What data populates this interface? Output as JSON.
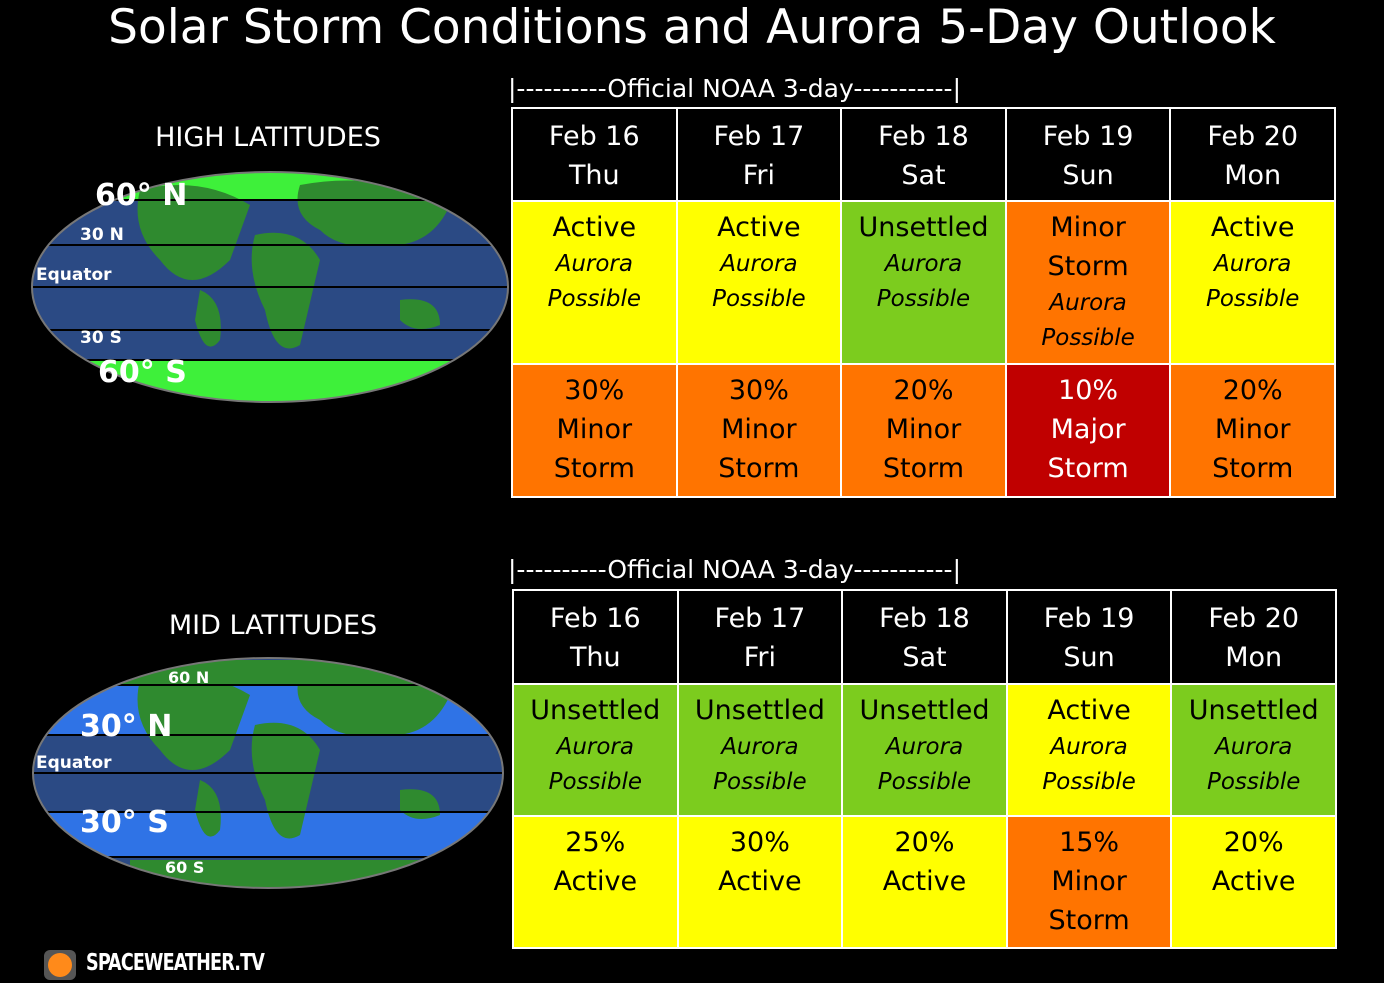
{
  "title": "Solar Storm Conditions and Aurora 5-Day Outlook",
  "sections": [
    {
      "label": "HIGH LATITUDES",
      "map_labels": [
        "60° N",
        "30 N",
        "Equator",
        "30 S",
        "60° S"
      ],
      "banner": "|----------Official NOAA 3-day-----------|",
      "days": [
        {
          "date": "Feb 16",
          "weekday": "Thu"
        },
        {
          "date": "Feb 17",
          "weekday": "Fri"
        },
        {
          "date": "Feb 18",
          "weekday": "Sat"
        },
        {
          "date": "Feb 19",
          "weekday": "Sun"
        },
        {
          "date": "Feb 20",
          "weekday": "Mon"
        }
      ],
      "conditions": [
        {
          "level": "Active",
          "note": "Aurora Possible",
          "color": "#ffff00"
        },
        {
          "level": "Active",
          "note": "Aurora Possible",
          "color": "#ffff00"
        },
        {
          "level": "Unsettled",
          "note": "Aurora Possible",
          "color": "#7ccc1e"
        },
        {
          "level": "Minor Storm",
          "note": "Aurora Possible",
          "color": "#ff7400"
        },
        {
          "level": "Active",
          "note": "Aurora Possible",
          "color": "#ffff00"
        }
      ],
      "chances": [
        {
          "percent": "30%",
          "level": "Minor Storm",
          "color": "#ff7400"
        },
        {
          "percent": "30%",
          "level": "Minor Storm",
          "color": "#ff7400"
        },
        {
          "percent": "20%",
          "level": "Minor Storm",
          "color": "#ff7400"
        },
        {
          "percent": "10%",
          "level": "Major Storm",
          "color": "#c00000"
        },
        {
          "percent": "20%",
          "level": "Minor Storm",
          "color": "#ff7400"
        }
      ]
    },
    {
      "label": "MID LATITUDES",
      "map_labels": [
        "60 N",
        "30° N",
        "Equator",
        "30° S",
        "60 S"
      ],
      "banner": "|----------Official NOAA 3-day-----------|",
      "days": [
        {
          "date": "Feb 16",
          "weekday": "Thu"
        },
        {
          "date": "Feb 17",
          "weekday": "Fri"
        },
        {
          "date": "Feb 18",
          "weekday": "Sat"
        },
        {
          "date": "Feb 19",
          "weekday": "Sun"
        },
        {
          "date": "Feb 20",
          "weekday": "Mon"
        }
      ],
      "conditions": [
        {
          "level": "Unsettled",
          "note": "Aurora Possible",
          "color": "#7ccc1e"
        },
        {
          "level": "Unsettled",
          "note": "Aurora Possible",
          "color": "#7ccc1e"
        },
        {
          "level": "Unsettled",
          "note": "Aurora Possible",
          "color": "#7ccc1e"
        },
        {
          "level": "Active",
          "note": "Aurora Possible",
          "color": "#ffff00"
        },
        {
          "level": "Unsettled",
          "note": "Aurora Possible",
          "color": "#7ccc1e"
        }
      ],
      "chances": [
        {
          "percent": "25%",
          "level": "Active",
          "color": "#ffff00"
        },
        {
          "percent": "30%",
          "level": "Active",
          "color": "#ffff00"
        },
        {
          "percent": "20%",
          "level": "Active",
          "color": "#ffff00"
        },
        {
          "percent": "15%",
          "level": "Minor Storm",
          "color": "#ff7400"
        },
        {
          "percent": "20%",
          "level": "Active",
          "color": "#ffff00"
        }
      ]
    }
  ],
  "logo": "SPACEWEATHER.TV"
}
